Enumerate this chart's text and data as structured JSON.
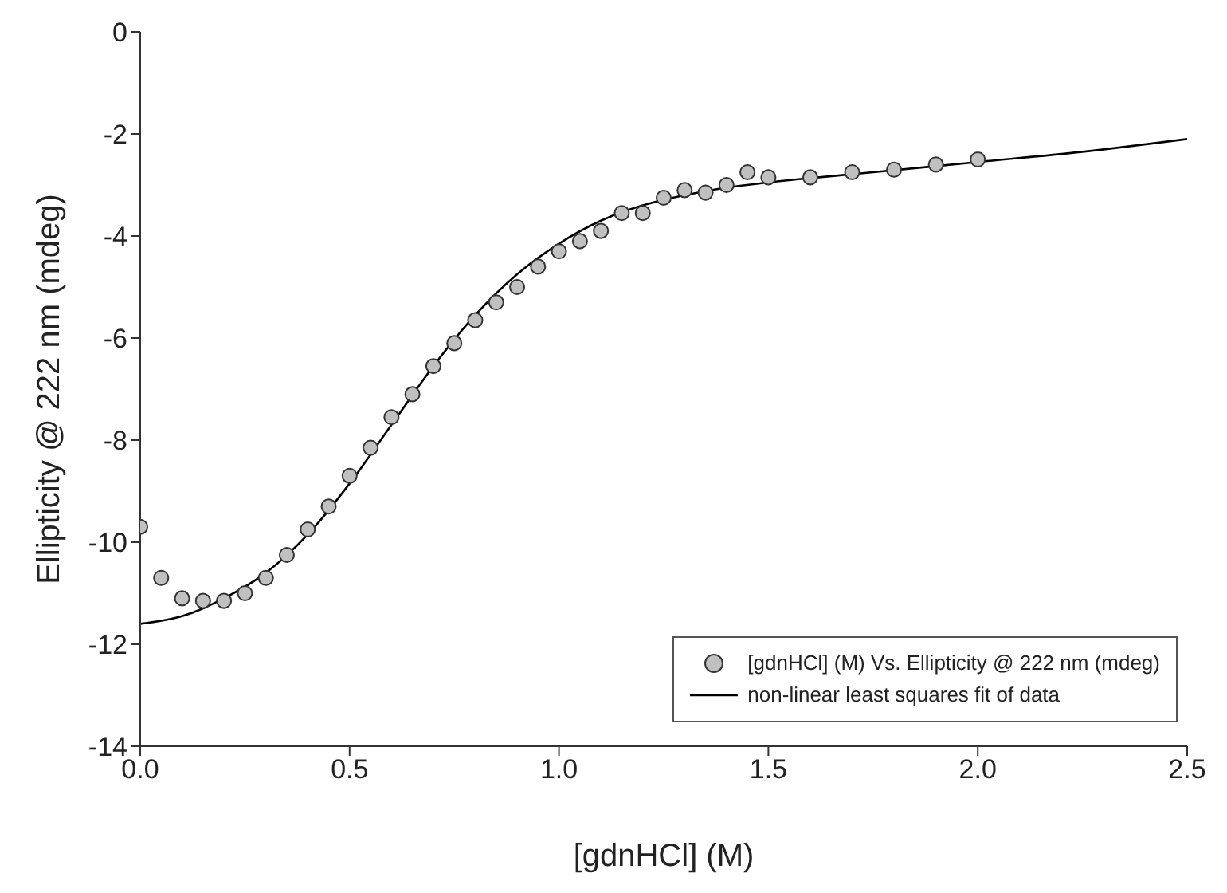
{
  "chart_data": {
    "type": "scatter",
    "xlabel": "[gdnHCl] (M)",
    "ylabel": "Ellipticity @ 222 nm (mdeg)",
    "xlim": [
      0,
      2.5
    ],
    "xticks": [
      {
        "value": 0,
        "label": "0.0"
      },
      {
        "value": 0.5,
        "label": "0.5"
      },
      {
        "value": 1,
        "label": "1.0"
      },
      {
        "value": 1.5,
        "label": "1.5"
      },
      {
        "value": 2,
        "label": "2.0"
      },
      {
        "value": 2.5,
        "label": "2.5"
      }
    ],
    "ylim": [
      -14,
      0
    ],
    "yticks": [
      -14,
      -12,
      -10,
      -8,
      -6,
      -4,
      -2,
      0
    ],
    "legend": "bottom right",
    "marker": "circle",
    "series": [
      {
        "name": "[gdnHCl] (M) Vs. Ellipticity @ 222 nm (mdeg)",
        "color": "#c0c0c0",
        "x": [
          0,
          0.05,
          0.1,
          0.15,
          0.2,
          0.25,
          0.3,
          0.35,
          0.4,
          0.45,
          0.5,
          0.55,
          0.6,
          0.65,
          0.7,
          0.75,
          0.8,
          0.85,
          0.9,
          0.95,
          1.0,
          1.05,
          1.1,
          1.15,
          1.2,
          1.25,
          1.3,
          1.35,
          1.4,
          1.45,
          1.5,
          1.6,
          1.7,
          1.8,
          1.9,
          2.0
        ],
        "values": [
          -9.7,
          -10.7,
          -11.1,
          -11.15,
          -11.15,
          -11.0,
          -10.7,
          -10.25,
          -9.75,
          -9.3,
          -8.7,
          -8.15,
          -7.55,
          -7.1,
          -6.55,
          -6.1,
          -5.65,
          -5.3,
          -5.0,
          -4.6,
          -4.3,
          -4.1,
          -3.9,
          -3.55,
          -3.55,
          -3.25,
          -3.1,
          -3.15,
          -3.0,
          -2.75,
          -2.85,
          -2.85,
          -2.75,
          -2.7,
          -2.6,
          -2.5
        ]
      },
      {
        "type": "line",
        "name": "non-linear least squares fit of data",
        "color": "#000000",
        "marker": "none",
        "x": [
          0,
          0.1,
          0.2,
          0.3,
          0.4,
          0.5,
          0.6,
          0.7,
          0.8,
          0.9,
          1.0,
          1.1,
          1.2,
          1.3,
          1.4,
          1.5,
          1.75,
          2.0,
          2.25,
          2.5
        ],
        "values": [
          -11.6,
          -11.45,
          -11.1,
          -10.6,
          -9.85,
          -8.85,
          -7.7,
          -6.55,
          -5.55,
          -4.75,
          -4.15,
          -3.7,
          -3.4,
          -3.2,
          -3.05,
          -2.95,
          -2.75,
          -2.55,
          -2.35,
          -2.1
        ]
      }
    ]
  }
}
